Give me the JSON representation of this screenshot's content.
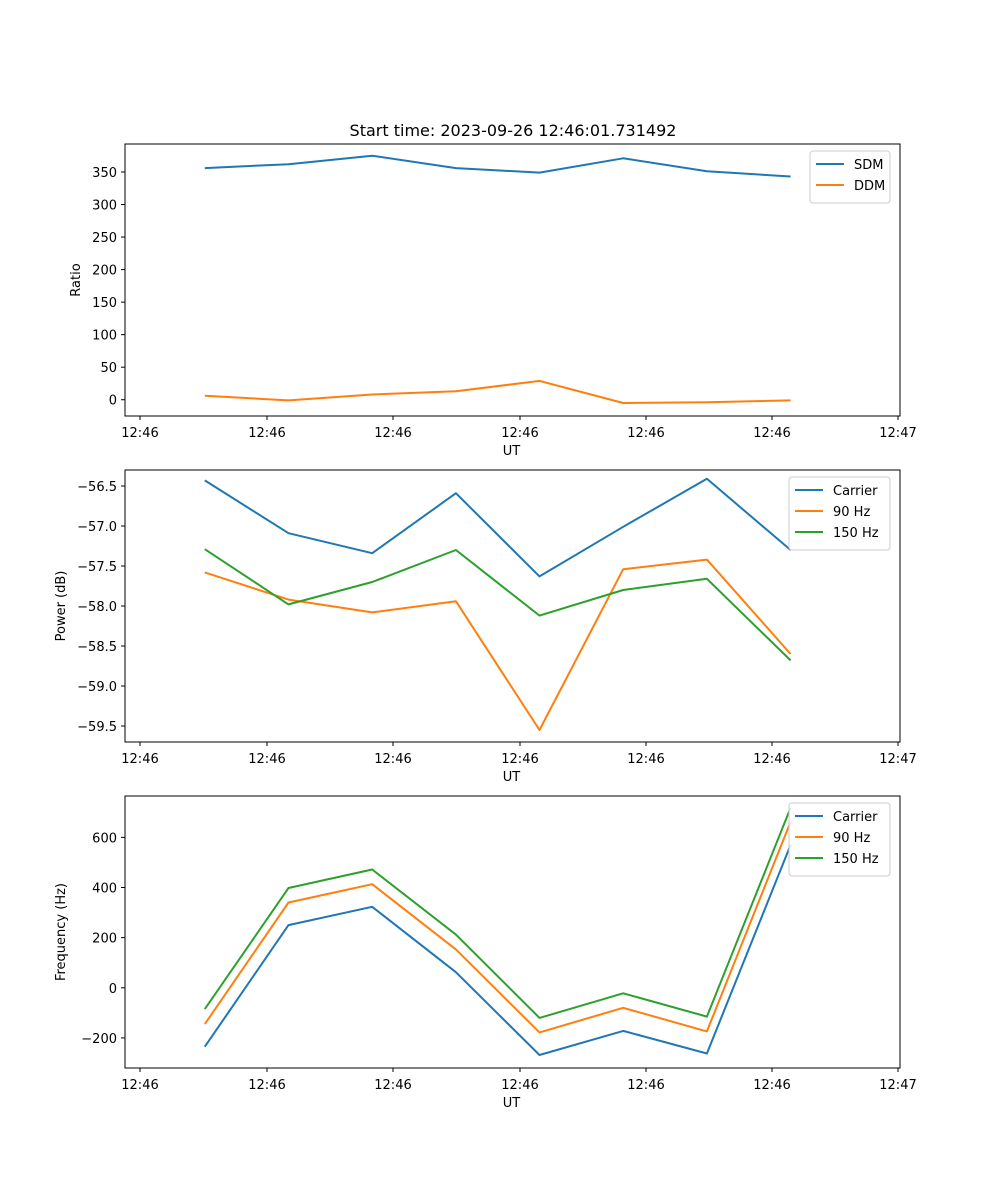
{
  "figure": {
    "title": "Start time: 2023-09-26 12:46:01.731492"
  },
  "chart_data": [
    {
      "type": "line",
      "xlabel": "UT",
      "ylabel": "Ratio",
      "x_tick_labels": [
        "12:46",
        "12:46",
        "12:46",
        "12:46",
        "12:46",
        "12:46",
        "12:46",
        "12:47"
      ],
      "x_index": [
        0.5,
        1.15,
        1.8,
        2.45,
        3.1,
        3.75,
        4.4,
        5.05
      ],
      "xlim": [
        -0.12,
        5.9
      ],
      "ylim": [
        -25,
        393
      ],
      "yticks": [
        0,
        50,
        100,
        150,
        200,
        250,
        300,
        350
      ],
      "legend": "top-right",
      "series": [
        {
          "name": "SDM",
          "color": "#1f77b4",
          "values": [
            356,
            362,
            375,
            356,
            349,
            371,
            351,
            343
          ]
        },
        {
          "name": "DDM",
          "color": "#ff7f0e",
          "values": [
            6,
            -1,
            8,
            13,
            29,
            -5,
            -4,
            -1
          ]
        }
      ]
    },
    {
      "type": "line",
      "xlabel": "UT",
      "ylabel": "Power (dB)",
      "x_tick_labels": [
        "12:46",
        "12:46",
        "12:46",
        "12:46",
        "12:46",
        "12:46",
        "12:46",
        "12:47"
      ],
      "x_index": [
        0.5,
        1.15,
        1.8,
        2.45,
        3.1,
        3.75,
        4.4,
        5.05
      ],
      "xlim": [
        -0.12,
        5.9
      ],
      "ylim": [
        -59.7,
        -56.3
      ],
      "yticks": [
        -59.5,
        -59.0,
        -58.5,
        -58.0,
        -57.5,
        -57.0,
        -56.5
      ],
      "legend": "top-right",
      "series": [
        {
          "name": "Carrier",
          "color": "#1f77b4",
          "values": [
            -56.43,
            -57.09,
            -57.34,
            -56.59,
            -57.63,
            -57.01,
            -56.41,
            -57.3
          ]
        },
        {
          "name": "90 Hz",
          "color": "#ff7f0e",
          "values": [
            -57.58,
            -57.92,
            -58.08,
            -57.94,
            -59.55,
            -57.54,
            -57.42,
            -58.6
          ]
        },
        {
          "name": "150 Hz",
          "color": "#2ca02c",
          "values": [
            -57.29,
            -57.98,
            -57.7,
            -57.3,
            -58.12,
            -57.8,
            -57.66,
            -58.68
          ]
        }
      ]
    },
    {
      "type": "line",
      "xlabel": "UT",
      "ylabel": "Frequency (Hz)",
      "x_tick_labels": [
        "12:46",
        "12:46",
        "12:46",
        "12:46",
        "12:46",
        "12:46",
        "12:46",
        "12:47"
      ],
      "x_index": [
        0.5,
        1.15,
        1.8,
        2.45,
        3.1,
        3.75,
        4.4,
        5.05
      ],
      "xlim": [
        -0.12,
        5.9
      ],
      "ylim": [
        -320,
        765
      ],
      "yticks": [
        -200,
        0,
        200,
        400,
        600
      ],
      "legend": "top-right",
      "series": [
        {
          "name": "Carrier",
          "color": "#1f77b4",
          "values": [
            -235,
            250,
            323,
            62,
            -268,
            -172,
            -262,
            570
          ]
        },
        {
          "name": "90 Hz",
          "color": "#ff7f0e",
          "values": [
            -145,
            340,
            413,
            153,
            -178,
            -80,
            -174,
            662
          ]
        },
        {
          "name": "150 Hz",
          "color": "#2ca02c",
          "values": [
            -85,
            398,
            472,
            212,
            -120,
            -22,
            -115,
            718
          ]
        }
      ]
    }
  ]
}
